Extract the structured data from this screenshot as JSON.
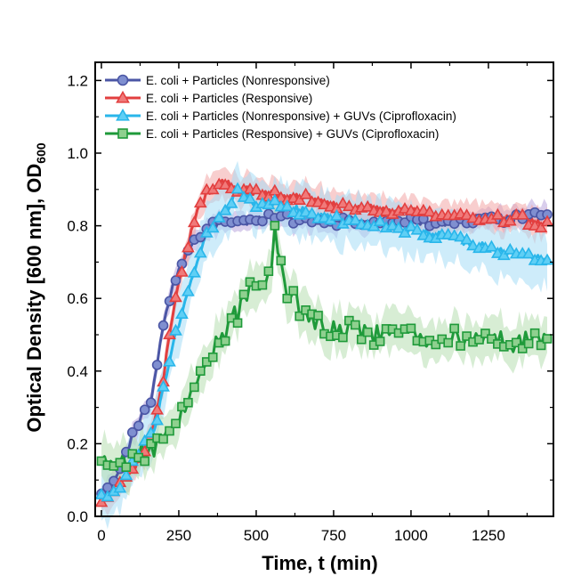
{
  "chart_data": {
    "type": "line",
    "title": "",
    "xlabel": "Time, t (min)",
    "ylabel_main": "Optical Density [600 nm], OD",
    "ylabel_sub": "600",
    "xlim": [
      -20,
      1460
    ],
    "ylim": [
      0,
      1.25
    ],
    "x_ticks": [
      0,
      250,
      500,
      750,
      1000,
      1250
    ],
    "x_tick_labels": [
      "0",
      "250",
      "500",
      "750",
      "1000",
      "1250"
    ],
    "y_ticks": [
      0.0,
      0.2,
      0.4,
      0.6,
      0.8,
      1.0,
      1.2
    ],
    "y_tick_labels": [
      "0.0",
      "0.2",
      "0.4",
      "0.6",
      "0.8",
      "1.0",
      "1.2"
    ],
    "grid": false,
    "legend_position": "top-left",
    "series": [
      {
        "name": "E. coli + Particles (Nonresponsive)",
        "color": "#4b56a5",
        "fill": "#7f8fd0",
        "band_color": "#b9a6dc",
        "marker": "circle",
        "points": [
          [
            0,
            0.07
          ],
          [
            20,
            0.08
          ],
          [
            40,
            0.1
          ],
          [
            60,
            0.14
          ],
          [
            80,
            0.18
          ],
          [
            100,
            0.22
          ],
          [
            120,
            0.26
          ],
          [
            140,
            0.29
          ],
          [
            160,
            0.32
          ],
          [
            180,
            0.42
          ],
          [
            200,
            0.52
          ],
          [
            220,
            0.6
          ],
          [
            240,
            0.66
          ],
          [
            260,
            0.7
          ],
          [
            280,
            0.73
          ],
          [
            300,
            0.76
          ],
          [
            320,
            0.78
          ],
          [
            340,
            0.79
          ],
          [
            360,
            0.8
          ],
          [
            380,
            0.81
          ],
          [
            400,
            0.815
          ],
          [
            420,
            0.82
          ],
          [
            450,
            0.81
          ],
          [
            500,
            0.82
          ],
          [
            550,
            0.825
          ],
          [
            600,
            0.82
          ],
          [
            650,
            0.815
          ],
          [
            700,
            0.815
          ],
          [
            750,
            0.81
          ],
          [
            800,
            0.815
          ],
          [
            850,
            0.81
          ],
          [
            900,
            0.815
          ],
          [
            950,
            0.81
          ],
          [
            1000,
            0.815
          ],
          [
            1050,
            0.81
          ],
          [
            1100,
            0.81
          ],
          [
            1150,
            0.815
          ],
          [
            1200,
            0.815
          ],
          [
            1250,
            0.82
          ],
          [
            1300,
            0.82
          ],
          [
            1350,
            0.825
          ],
          [
            1400,
            0.83
          ],
          [
            1440,
            0.83
          ]
        ],
        "error": 0.025
      },
      {
        "name": "E. coli + Particles (Responsive)",
        "color": "#e23f3f",
        "fill": "#f07a7a",
        "band_color": "#f2a6a6",
        "marker": "triangle",
        "points": [
          [
            0,
            0.05
          ],
          [
            20,
            0.06
          ],
          [
            40,
            0.07
          ],
          [
            60,
            0.09
          ],
          [
            80,
            0.11
          ],
          [
            100,
            0.13
          ],
          [
            120,
            0.16
          ],
          [
            140,
            0.19
          ],
          [
            160,
            0.22
          ],
          [
            180,
            0.3
          ],
          [
            200,
            0.38
          ],
          [
            220,
            0.5
          ],
          [
            240,
            0.6
          ],
          [
            260,
            0.68
          ],
          [
            280,
            0.74
          ],
          [
            300,
            0.82
          ],
          [
            320,
            0.86
          ],
          [
            340,
            0.89
          ],
          [
            360,
            0.91
          ],
          [
            380,
            0.92
          ],
          [
            400,
            0.92
          ],
          [
            450,
            0.9
          ],
          [
            500,
            0.89
          ],
          [
            550,
            0.89
          ],
          [
            600,
            0.88
          ],
          [
            650,
            0.88
          ],
          [
            700,
            0.87
          ],
          [
            750,
            0.86
          ],
          [
            800,
            0.85
          ],
          [
            850,
            0.85
          ],
          [
            900,
            0.84
          ],
          [
            950,
            0.84
          ],
          [
            1000,
            0.84
          ],
          [
            1050,
            0.83
          ],
          [
            1100,
            0.83
          ],
          [
            1150,
            0.83
          ],
          [
            1200,
            0.82
          ],
          [
            1250,
            0.82
          ],
          [
            1300,
            0.82
          ],
          [
            1350,
            0.82
          ],
          [
            1400,
            0.81
          ],
          [
            1440,
            0.8
          ]
        ],
        "error": 0.035
      },
      {
        "name": "E. coli + Particles (Nonresponsive) + GUVs (Ciprofloxacin)",
        "color": "#29b6ea",
        "fill": "#5fcff5",
        "band_color": "#a6dcf6",
        "marker": "triangle",
        "points": [
          [
            0,
            0.05
          ],
          [
            20,
            0.06
          ],
          [
            40,
            0.07
          ],
          [
            60,
            0.09
          ],
          [
            80,
            0.12
          ],
          [
            100,
            0.15
          ],
          [
            120,
            0.18
          ],
          [
            140,
            0.2
          ],
          [
            160,
            0.22
          ],
          [
            180,
            0.27
          ],
          [
            200,
            0.35
          ],
          [
            220,
            0.42
          ],
          [
            240,
            0.5
          ],
          [
            260,
            0.56
          ],
          [
            280,
            0.62
          ],
          [
            300,
            0.68
          ],
          [
            320,
            0.73
          ],
          [
            340,
            0.77
          ],
          [
            360,
            0.8
          ],
          [
            380,
            0.82
          ],
          [
            400,
            0.84
          ],
          [
            420,
            0.87
          ],
          [
            440,
            0.9
          ],
          [
            460,
            0.89
          ],
          [
            480,
            0.87
          ],
          [
            500,
            0.86
          ],
          [
            550,
            0.86
          ],
          [
            600,
            0.85
          ],
          [
            650,
            0.84
          ],
          [
            700,
            0.83
          ],
          [
            750,
            0.82
          ],
          [
            800,
            0.81
          ],
          [
            850,
            0.8
          ],
          [
            900,
            0.8
          ],
          [
            950,
            0.79
          ],
          [
            1000,
            0.79
          ],
          [
            1050,
            0.78
          ],
          [
            1100,
            0.77
          ],
          [
            1150,
            0.76
          ],
          [
            1200,
            0.75
          ],
          [
            1250,
            0.74
          ],
          [
            1300,
            0.73
          ],
          [
            1350,
            0.72
          ],
          [
            1400,
            0.71
          ],
          [
            1440,
            0.7
          ]
        ],
        "error": 0.06
      },
      {
        "name": "E. coli + Particles (Responsive) + GUVs (Ciprofloxacin)",
        "color": "#1f9a3a",
        "fill": "#8fd08f",
        "band_color": "#b6deb0",
        "marker": "square",
        "points": [
          [
            0,
            0.15
          ],
          [
            20,
            0.14
          ],
          [
            40,
            0.13
          ],
          [
            60,
            0.14
          ],
          [
            80,
            0.15
          ],
          [
            100,
            0.16
          ],
          [
            120,
            0.17
          ],
          [
            140,
            0.18
          ],
          [
            160,
            0.19
          ],
          [
            180,
            0.19
          ],
          [
            200,
            0.2
          ],
          [
            220,
            0.22
          ],
          [
            240,
            0.25
          ],
          [
            260,
            0.29
          ],
          [
            280,
            0.33
          ],
          [
            300,
            0.37
          ],
          [
            320,
            0.4
          ],
          [
            340,
            0.43
          ],
          [
            360,
            0.46
          ],
          [
            380,
            0.48
          ],
          [
            400,
            0.5
          ],
          [
            420,
            0.54
          ],
          [
            440,
            0.56
          ],
          [
            460,
            0.59
          ],
          [
            480,
            0.62
          ],
          [
            500,
            0.64
          ],
          [
            520,
            0.65
          ],
          [
            540,
            0.66
          ],
          [
            560,
            0.76
          ],
          [
            580,
            0.65
          ],
          [
            600,
            0.62
          ],
          [
            620,
            0.6
          ],
          [
            640,
            0.58
          ],
          [
            660,
            0.56
          ],
          [
            680,
            0.55
          ],
          [
            700,
            0.54
          ],
          [
            720,
            0.53
          ],
          [
            750,
            0.52
          ],
          [
            800,
            0.51
          ],
          [
            850,
            0.5
          ],
          [
            900,
            0.5
          ],
          [
            950,
            0.5
          ],
          [
            1000,
            0.49
          ],
          [
            1050,
            0.49
          ],
          [
            1100,
            0.49
          ],
          [
            1150,
            0.49
          ],
          [
            1200,
            0.48
          ],
          [
            1250,
            0.48
          ],
          [
            1300,
            0.48
          ],
          [
            1350,
            0.48
          ],
          [
            1400,
            0.48
          ],
          [
            1440,
            0.48
          ]
        ],
        "error": 0.05
      }
    ]
  }
}
